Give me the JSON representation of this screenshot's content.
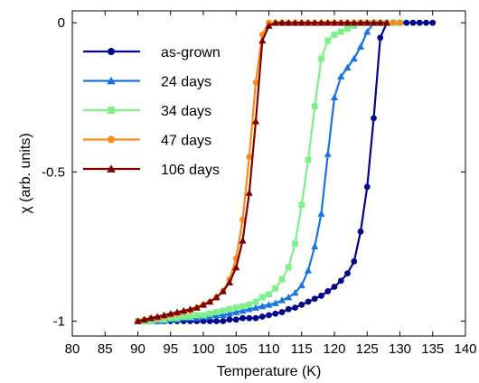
{
  "chart_data": {
    "type": "line",
    "xlabel": "Temperature (K)",
    "ylabel": "χ (arb. units)",
    "xlim": [
      80,
      140
    ],
    "ylim": [
      -1.05,
      0.04
    ],
    "xticks": [
      80,
      85,
      90,
      95,
      100,
      105,
      110,
      115,
      120,
      125,
      130,
      135,
      140
    ],
    "xtick_labels": [
      "80",
      "85",
      "90",
      "95",
      "100",
      "105",
      "110",
      "115",
      "120",
      "125",
      "130",
      "135",
      "140"
    ],
    "yticks": [
      0,
      -0.5,
      -1
    ],
    "ytick_labels": [
      "0",
      "-0.5",
      "-1"
    ],
    "grid": false,
    "legend_position": "top-left",
    "series": [
      {
        "name": "as-grown",
        "color": "#00078a",
        "marker": "circle",
        "x": [
          90,
          91,
          92,
          93,
          94,
          95,
          96,
          97,
          98,
          99,
          100,
          101,
          102,
          103,
          104,
          105,
          106,
          107,
          108,
          109,
          110,
          111,
          112,
          113,
          114,
          115,
          116,
          117,
          118,
          119,
          120,
          121,
          122,
          123,
          124,
          125,
          126,
          127,
          128,
          129,
          130,
          131,
          132,
          133,
          134,
          135
        ],
        "y": [
          -1.0,
          -1.0,
          -1.0,
          -1.0,
          -1.0,
          -1.0,
          -1.0,
          -1.0,
          -1.0,
          -1.0,
          -1.0,
          -1.0,
          -1.0,
          -1.0,
          -0.995,
          -0.995,
          -0.99,
          -0.99,
          -0.99,
          -0.985,
          -0.98,
          -0.975,
          -0.97,
          -0.96,
          -0.955,
          -0.945,
          -0.935,
          -0.925,
          -0.915,
          -0.9,
          -0.885,
          -0.865,
          -0.84,
          -0.8,
          -0.7,
          -0.55,
          -0.32,
          -0.05,
          0,
          0,
          0,
          0,
          0,
          0,
          0,
          0
        ]
      },
      {
        "name": "24 days",
        "color": "#1874e0",
        "marker": "triangle",
        "x": [
          90,
          91,
          92,
          93,
          94,
          95,
          96,
          97,
          98,
          99,
          100,
          101,
          102,
          103,
          104,
          105,
          106,
          107,
          108,
          109,
          110,
          111,
          112,
          113,
          114,
          115,
          116,
          117,
          118,
          119,
          120,
          121,
          122,
          123,
          124,
          125,
          126,
          127,
          128,
          129,
          130
        ],
        "y": [
          -1.0,
          -1.0,
          -1.0,
          -1.0,
          -1.0,
          -0.995,
          -0.995,
          -0.99,
          -0.99,
          -0.99,
          -0.985,
          -0.985,
          -0.98,
          -0.98,
          -0.975,
          -0.97,
          -0.965,
          -0.96,
          -0.955,
          -0.95,
          -0.945,
          -0.94,
          -0.93,
          -0.92,
          -0.905,
          -0.88,
          -0.83,
          -0.75,
          -0.64,
          -0.44,
          -0.25,
          -0.18,
          -0.15,
          -0.12,
          -0.08,
          -0.03,
          0,
          0,
          0,
          0,
          0
        ]
      },
      {
        "name": "34 days",
        "color": "#7ef08a",
        "marker": "square",
        "x": [
          90,
          91,
          92,
          93,
          94,
          95,
          96,
          97,
          98,
          99,
          100,
          101,
          102,
          103,
          104,
          105,
          106,
          107,
          108,
          109,
          110,
          111,
          112,
          113,
          114,
          115,
          116,
          117,
          118,
          119,
          120,
          121,
          122,
          123,
          124,
          125,
          126,
          127,
          128,
          129,
          130
        ],
        "y": [
          -1.0,
          -1.0,
          -1.0,
          -0.995,
          -0.995,
          -0.99,
          -0.99,
          -0.985,
          -0.985,
          -0.98,
          -0.98,
          -0.975,
          -0.97,
          -0.965,
          -0.96,
          -0.955,
          -0.95,
          -0.945,
          -0.935,
          -0.92,
          -0.91,
          -0.89,
          -0.86,
          -0.82,
          -0.74,
          -0.61,
          -0.46,
          -0.28,
          -0.12,
          -0.06,
          -0.04,
          -0.03,
          -0.02,
          -0.01,
          0,
          0,
          0,
          0,
          0,
          0,
          0
        ]
      },
      {
        "name": "47 days",
        "color": "#f98a1a",
        "marker": "circle",
        "x": [
          90,
          91,
          92,
          93,
          94,
          95,
          96,
          97,
          98,
          99,
          100,
          101,
          102,
          103,
          104,
          105,
          106,
          107,
          108,
          109,
          110,
          111,
          112,
          113,
          114,
          115,
          116,
          117,
          118,
          119,
          120,
          121,
          122,
          123,
          124,
          125,
          126,
          127,
          128,
          129,
          130
        ],
        "y": [
          -1.0,
          -0.995,
          -0.99,
          -0.99,
          -0.985,
          -0.98,
          -0.975,
          -0.97,
          -0.965,
          -0.955,
          -0.945,
          -0.935,
          -0.92,
          -0.9,
          -0.86,
          -0.79,
          -0.66,
          -0.45,
          -0.2,
          -0.04,
          0,
          0,
          0,
          0,
          0,
          0,
          0,
          0,
          0,
          0,
          0,
          0,
          0,
          0,
          0,
          0,
          0,
          0,
          0,
          0,
          0
        ]
      },
      {
        "name": "106 days",
        "color": "#7d0000",
        "marker": "triangle",
        "x": [
          90,
          91,
          92,
          93,
          94,
          95,
          96,
          97,
          98,
          99,
          100,
          101,
          102,
          103,
          104,
          105,
          106,
          107,
          108,
          109,
          110,
          111,
          112,
          113,
          114,
          115,
          116,
          117,
          118,
          119,
          120,
          121,
          122,
          123,
          124,
          125,
          126,
          127,
          128
        ],
        "y": [
          -1.0,
          -0.995,
          -0.99,
          -0.985,
          -0.98,
          -0.975,
          -0.97,
          -0.965,
          -0.96,
          -0.955,
          -0.945,
          -0.935,
          -0.92,
          -0.9,
          -0.87,
          -0.82,
          -0.73,
          -0.57,
          -0.33,
          -0.06,
          -0.01,
          0,
          0,
          0,
          0,
          0,
          0,
          0,
          0,
          0,
          0,
          0,
          0,
          0,
          0,
          0,
          0,
          0,
          0
        ]
      }
    ]
  }
}
